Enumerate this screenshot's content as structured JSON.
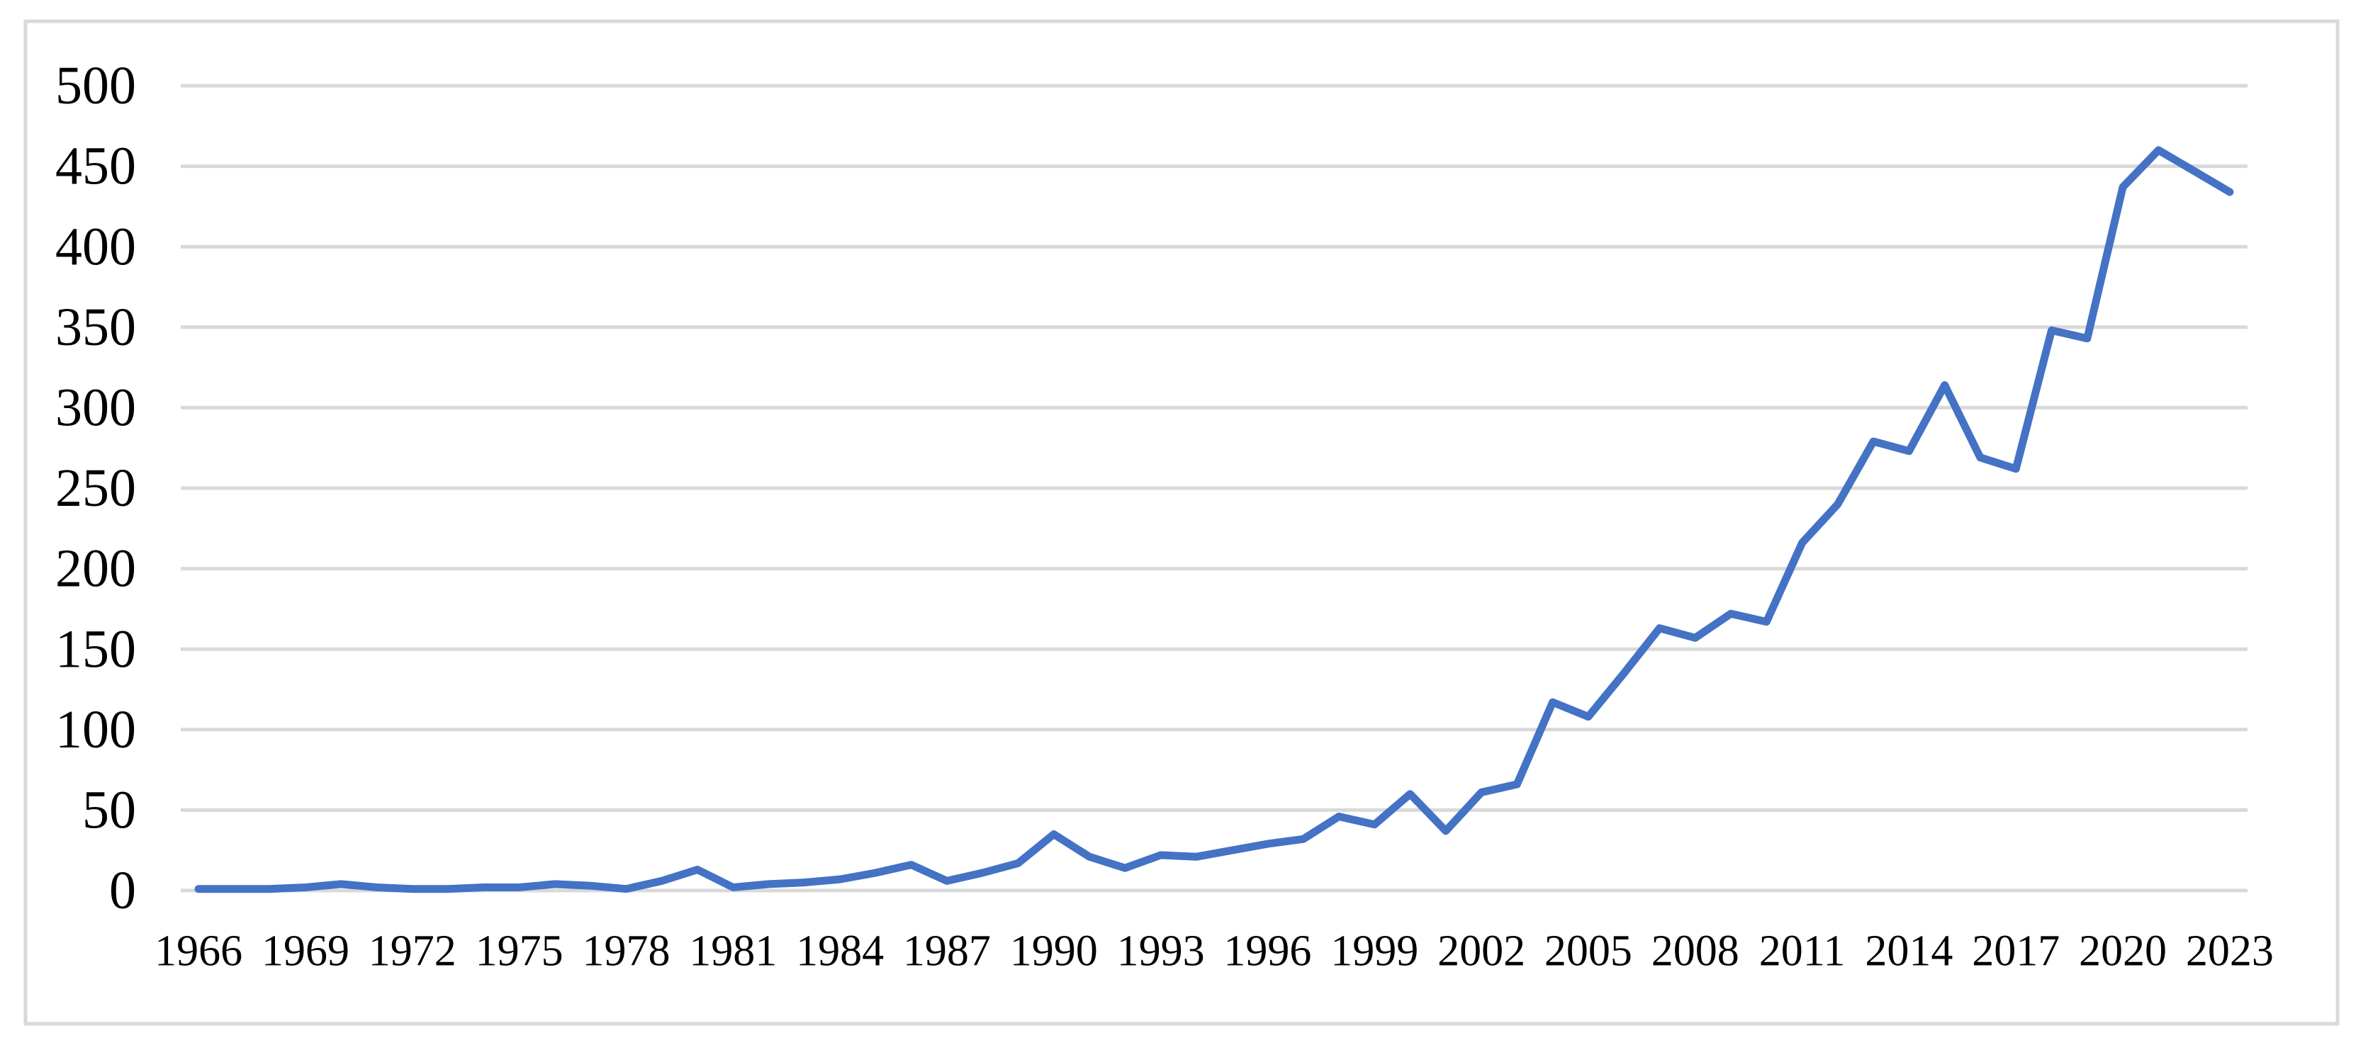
{
  "chart_data": {
    "type": "line",
    "title": "",
    "xlabel": "",
    "ylabel": "",
    "x": [
      1966,
      1967,
      1968,
      1969,
      1970,
      1971,
      1972,
      1973,
      1974,
      1975,
      1976,
      1977,
      1978,
      1979,
      1980,
      1981,
      1982,
      1983,
      1984,
      1985,
      1986,
      1987,
      1988,
      1989,
      1990,
      1991,
      1992,
      1993,
      1994,
      1995,
      1996,
      1997,
      1998,
      1999,
      2000,
      2001,
      2002,
      2003,
      2004,
      2005,
      2006,
      2007,
      2008,
      2009,
      2010,
      2011,
      2012,
      2013,
      2014,
      2015,
      2016,
      2017,
      2018,
      2019,
      2020,
      2021,
      2022,
      2023
    ],
    "values": [
      1,
      1,
      1,
      2,
      4,
      2,
      1,
      1,
      2,
      2,
      4,
      3,
      1,
      6,
      13,
      2,
      4,
      5,
      7,
      11,
      16,
      6,
      11,
      17,
      35,
      21,
      14,
      22,
      21,
      25,
      29,
      32,
      46,
      41,
      60,
      37,
      61,
      66,
      117,
      108,
      135,
      163,
      157,
      172,
      167,
      216,
      240,
      279,
      273,
      314,
      269,
      262,
      348,
      343,
      437,
      460,
      447,
      434
    ],
    "x_tick_labels": [
      "1966",
      "1969",
      "1972",
      "1975",
      "1978",
      "1981",
      "1984",
      "1987",
      "1990",
      "1993",
      "1996",
      "1999",
      "2002",
      "2005",
      "2008",
      "2011",
      "2014",
      "2017",
      "2020",
      "2023"
    ],
    "x_tick_step": 3,
    "y_ticks": [
      0,
      50,
      100,
      150,
      200,
      250,
      300,
      350,
      400,
      450,
      500
    ],
    "ylim": [
      0,
      500
    ],
    "grid": "horizontal",
    "legend": "none",
    "colors": {
      "line": "#4472C4",
      "gridline": "#D9D9D9",
      "border": "#D9D9D9",
      "text": "#000000",
      "background": "#FFFFFF"
    }
  }
}
